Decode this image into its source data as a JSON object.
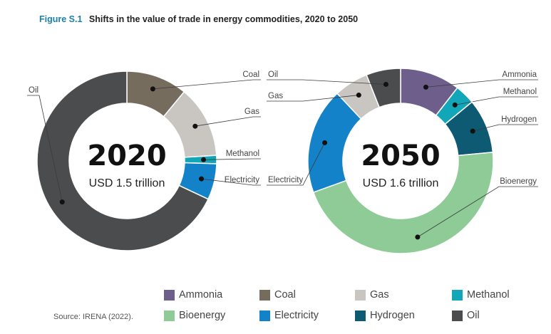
{
  "figure": {
    "label": "Figure S.1",
    "title": "Shifts in the value of trade in energy commodities, 2020 to 2050"
  },
  "source": "Source: IRENA (2022).",
  "colors": {
    "Ammonia": "#6d5e8c",
    "Coal": "#766c5e",
    "Gas": "#c9c5c1",
    "Methanol": "#12a7b8",
    "Bioenergy": "#8fcb97",
    "Electricity": "#1482c8",
    "Hydrogen": "#0d5a72",
    "Oil": "#4a4c4e"
  },
  "legend": [
    "Ammonia",
    "Coal",
    "Gas",
    "Methanol",
    "Bioenergy",
    "Electricity",
    "Hydrogen",
    "Oil"
  ],
  "chart_data": [
    {
      "type": "pie",
      "year": "2020",
      "total": "USD 1.5 trillion",
      "slices": [
        {
          "name": "Coal",
          "value": 11
        },
        {
          "name": "Gas",
          "value": 13
        },
        {
          "name": "Methanol",
          "value": 1.5
        },
        {
          "name": "Electricity",
          "value": 6.5
        },
        {
          "name": "Oil",
          "value": 68
        }
      ]
    },
    {
      "type": "pie",
      "year": "2050",
      "total": "USD 1.6 trillion",
      "slices": [
        {
          "name": "Ammonia",
          "value": 10.5
        },
        {
          "name": "Methanol",
          "value": 3.5
        },
        {
          "name": "Hydrogen",
          "value": 9.5
        },
        {
          "name": "Bioenergy",
          "value": 46
        },
        {
          "name": "Electricity",
          "value": 18.5
        },
        {
          "name": "Gas",
          "value": 6
        },
        {
          "name": "Oil",
          "value": 6
        }
      ]
    }
  ]
}
